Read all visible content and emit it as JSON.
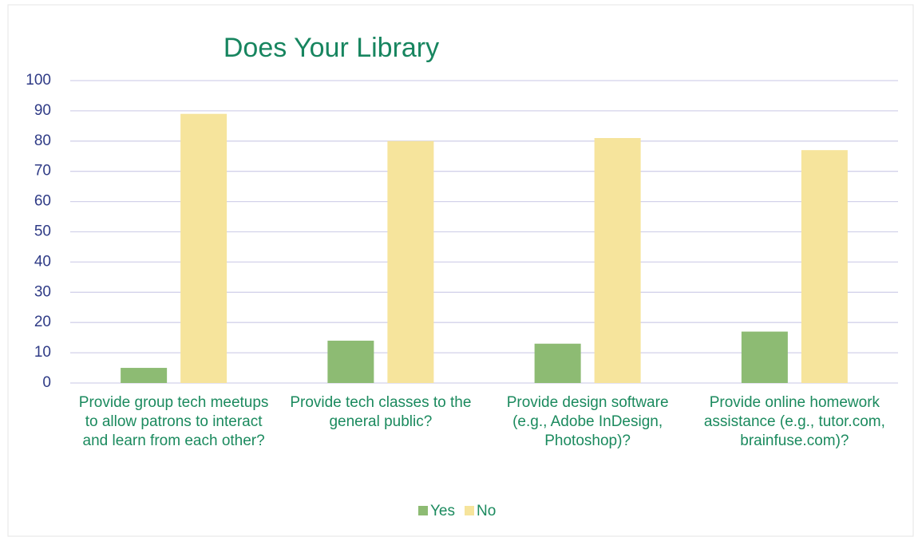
{
  "chart_data": {
    "type": "bar",
    "title": "Does Your Library",
    "categories": [
      "Provide group tech meetups to allow patrons to interact and learn from each other?",
      "Provide tech classes to the general public?",
      "Provide design software (e.g., Adobe InDesign, Photoshop)?",
      "Provide online homework assistance (e.g., tutor.com, brainfuse.com)?"
    ],
    "series": [
      {
        "name": "Yes",
        "color": "#8dbb73",
        "values": [
          5,
          14,
          13,
          17
        ]
      },
      {
        "name": "No",
        "color": "#f6e49c",
        "values": [
          89,
          80,
          81,
          77
        ]
      }
    ],
    "ylim": [
      0,
      100
    ],
    "yticks": [
      0,
      10,
      20,
      30,
      40,
      50,
      60,
      70,
      80,
      90,
      100
    ],
    "grid": true,
    "legend": "bottom"
  }
}
